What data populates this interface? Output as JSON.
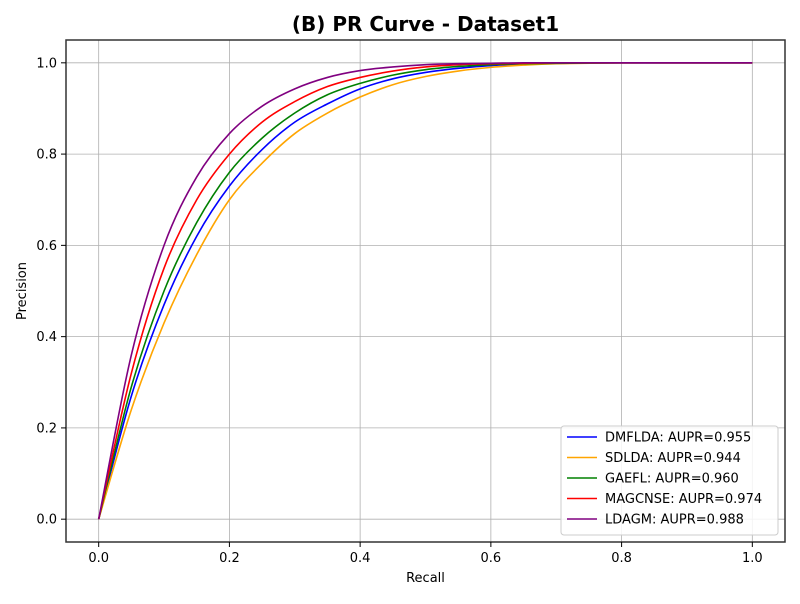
{
  "chart_data": {
    "type": "line",
    "title": "(B) PR Curve - Dataset1",
    "xlabel": "Recall",
    "ylabel": "Precision",
    "xlim": [
      -0.05,
      1.05
    ],
    "ylim": [
      -0.05,
      1.05
    ],
    "grid": true,
    "legend_position": "lower-right",
    "x": [
      0.0,
      0.05,
      0.1,
      0.15,
      0.2,
      0.25,
      0.3,
      0.35,
      0.4,
      0.45,
      0.5,
      0.55,
      0.6,
      0.65,
      0.7,
      0.8,
      0.9,
      1.0
    ],
    "xticks": [
      "0.0",
      "0.2",
      "0.4",
      "0.6",
      "0.8",
      "1.0"
    ],
    "yticks": [
      "0.0",
      "0.2",
      "0.4",
      "0.6",
      "0.8",
      "1.0"
    ],
    "series": [
      {
        "name": "DMFLDA: AUPR=0.955",
        "color": "#0000ff",
        "values": [
          0.0,
          0.27,
          0.47,
          0.62,
          0.73,
          0.81,
          0.87,
          0.91,
          0.943,
          0.965,
          0.979,
          0.988,
          0.994,
          0.997,
          0.999,
          1.0,
          1.0,
          1.0
        ]
      },
      {
        "name": "SDLDA: AUPR=0.944",
        "color": "#ffa500",
        "values": [
          0.0,
          0.24,
          0.43,
          0.58,
          0.7,
          0.78,
          0.845,
          0.89,
          0.925,
          0.952,
          0.97,
          0.982,
          0.99,
          0.995,
          0.998,
          1.0,
          1.0,
          1.0
        ]
      },
      {
        "name": "GAEFL: AUPR=0.960",
        "color": "#008000",
        "values": [
          0.0,
          0.29,
          0.5,
          0.65,
          0.76,
          0.835,
          0.89,
          0.93,
          0.955,
          0.973,
          0.985,
          0.992,
          0.996,
          0.998,
          0.999,
          1.0,
          1.0,
          1.0
        ]
      },
      {
        "name": "MAGCNSE: AUPR=0.974",
        "color": "#ff0000",
        "values": [
          0.0,
          0.32,
          0.55,
          0.7,
          0.8,
          0.87,
          0.915,
          0.948,
          0.968,
          0.982,
          0.991,
          0.996,
          0.998,
          0.999,
          1.0,
          1.0,
          1.0,
          1.0
        ]
      },
      {
        "name": "LDAGM: AUPR=0.988",
        "color": "#800080",
        "values": [
          0.0,
          0.36,
          0.6,
          0.75,
          0.845,
          0.905,
          0.943,
          0.968,
          0.983,
          0.991,
          0.996,
          0.998,
          0.999,
          1.0,
          1.0,
          1.0,
          1.0,
          1.0
        ]
      }
    ]
  }
}
